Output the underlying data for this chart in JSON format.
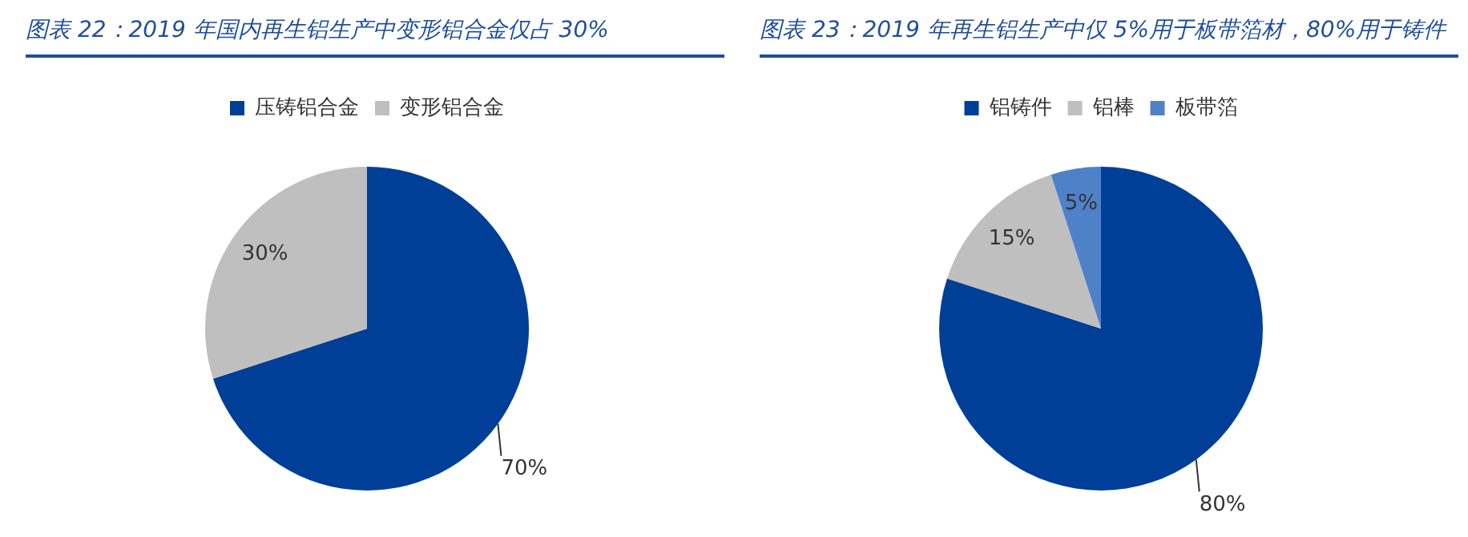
{
  "chart_data": [
    {
      "type": "pie",
      "title": "图表 22：2019 年国内再生铝生产中变形铝合金仅占 30%",
      "categories": [
        "压铸铝合金",
        "变形铝合金"
      ],
      "values": [
        70,
        30
      ],
      "colors": [
        "#003f98",
        "#bfbfbf"
      ],
      "value_labels": [
        "70%",
        "30%"
      ],
      "legend": "top"
    },
    {
      "type": "pie",
      "title": "图表 23：2019 年再生铝生产中仅 5%用于板带箔材，80%用于铸件",
      "categories": [
        "铝铸件",
        "铝棒",
        "板带箔"
      ],
      "values": [
        80,
        15,
        5
      ],
      "colors": [
        "#003f98",
        "#bfbfbf",
        "#4f81c8"
      ],
      "value_labels": [
        "80%",
        "15%",
        "5%"
      ],
      "legend": "top"
    }
  ]
}
